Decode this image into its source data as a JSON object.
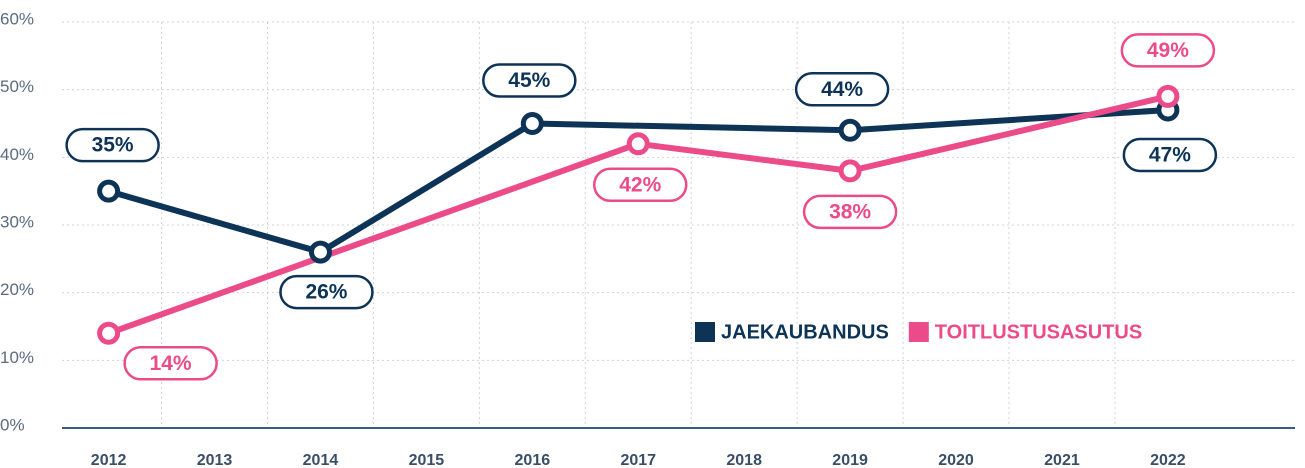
{
  "chart_data": {
    "type": "line",
    "xticks": [
      2012,
      2013,
      2014,
      2015,
      2016,
      2017,
      2018,
      2019,
      2020,
      2021,
      2022
    ],
    "xlim": [
      2011.56,
      2023.2
    ],
    "ylim": [
      0,
      60
    ],
    "yticks": [
      {
        "value": 0,
        "label": "0%"
      },
      {
        "value": 10,
        "label": "10%"
      },
      {
        "value": 20,
        "label": "20%"
      },
      {
        "value": 30,
        "label": "30%"
      },
      {
        "value": 40,
        "label": "40%"
      },
      {
        "value": 50,
        "label": "50%"
      },
      {
        "value": 60,
        "label": "60%"
      }
    ],
    "grid": true,
    "legend": "lower right",
    "series": [
      {
        "name": "JAEKAUBANDUS",
        "color": "#0d3457",
        "x": [
          2012,
          2014,
          2016,
          2019,
          2022
        ],
        "values": [
          35,
          26,
          45,
          44,
          47
        ],
        "value_labels": [
          "35%",
          "26%",
          "45%",
          "44%",
          "47%"
        ]
      },
      {
        "name": "TOITLUSTUSASUTUS",
        "color": "#ec4b8a",
        "x": [
          2012,
          2017,
          2019,
          2022
        ],
        "values": [
          14,
          42,
          38,
          49
        ],
        "value_labels": [
          "14%",
          "42%",
          "38%",
          "49%"
        ]
      }
    ]
  }
}
